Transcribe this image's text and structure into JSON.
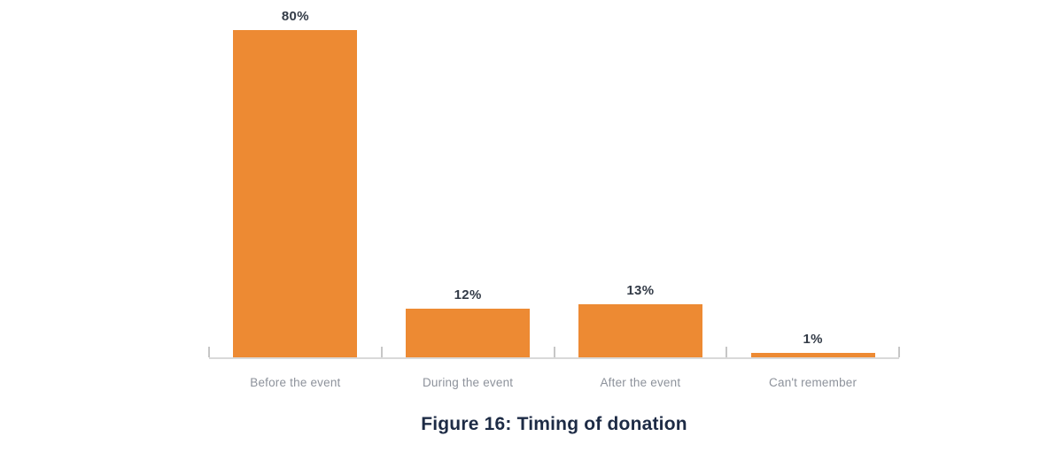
{
  "figure": {
    "caption": "Figure 16: Timing of donation"
  },
  "chart_data": {
    "type": "bar",
    "categories": [
      "Before the event",
      "During the event",
      "After the event",
      "Can't remember"
    ],
    "values": [
      80,
      12,
      13,
      1
    ],
    "value_labels": [
      "80%",
      "12%",
      "13%",
      "1%"
    ],
    "title": "Figure 16: Timing of donation",
    "xlabel": "",
    "ylabel": "",
    "ylim": [
      0,
      80
    ],
    "grid": false,
    "legend": "none",
    "colors": {
      "bar": "#ED8A33",
      "axis_line": "#D9D9D9",
      "tick": "#C6C6C6",
      "value_label": "#333B47",
      "category_label": "#8D929B",
      "title": "#1D2B45",
      "background": "#FFFFFF"
    }
  }
}
